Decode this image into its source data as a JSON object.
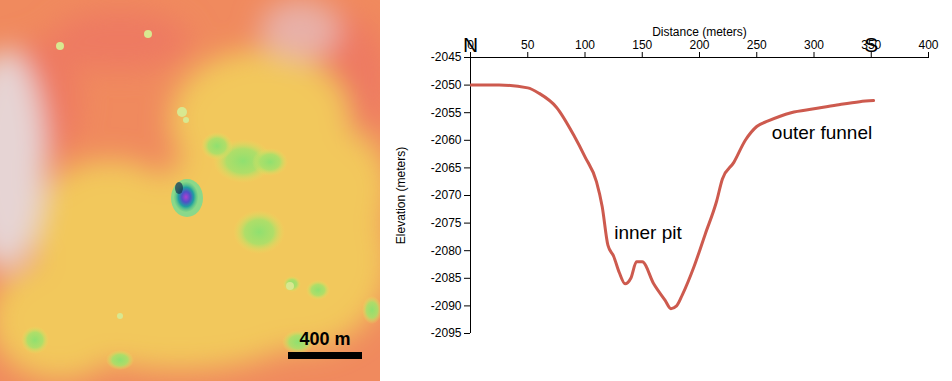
{
  "map_scale_label": "400 m",
  "chart_data": {
    "type": "line",
    "x_label": "Distance (meters)",
    "y_label": "Elevation (meters)",
    "x": [
      0,
      25,
      50,
      60,
      75,
      90,
      100,
      110,
      115,
      120,
      125,
      130,
      135,
      140,
      145,
      150,
      160,
      170,
      175,
      180,
      185,
      195,
      205,
      215,
      220,
      230,
      240,
      250,
      260,
      280,
      300,
      320,
      340,
      352
    ],
    "series": [
      {
        "name": "Elevation (meters)",
        "color": "#cd5a4e",
        "values": [
          -2050,
          -2050,
          -2050.5,
          -2051.5,
          -2054,
          -2059,
          -2063,
          -2067.5,
          -2072,
          -2079,
          -2081,
          -2084,
          -2086,
          -2085,
          -2082,
          -2082,
          -2086,
          -2089,
          -2090.5,
          -2090,
          -2088,
          -2083,
          -2077,
          -2071,
          -2067,
          -2064,
          -2060,
          -2057.5,
          -2056.5,
          -2055,
          -2054.3,
          -2053.6,
          -2053,
          -2052.8
        ]
      }
    ],
    "xlim": [
      0,
      400
    ],
    "xticks": [
      0,
      50,
      100,
      150,
      200,
      250,
      300,
      350,
      400
    ],
    "ylim": [
      -2095,
      -2045
    ],
    "yticks": [
      -2095,
      -2090,
      -2085,
      -2080,
      -2075,
      -2070,
      -2065,
      -2060,
      -2055,
      -2050,
      -2045
    ],
    "annotations": [
      {
        "text": "N",
        "x": 0,
        "y": -2042.8
      },
      {
        "text": "S",
        "x": 350,
        "y": -2042.8
      },
      {
        "text": "inner pit",
        "x": 155,
        "y": -2076.8
      },
      {
        "text": "outer funnel",
        "x": 307,
        "y": -2058.7
      }
    ],
    "grid": false
  }
}
